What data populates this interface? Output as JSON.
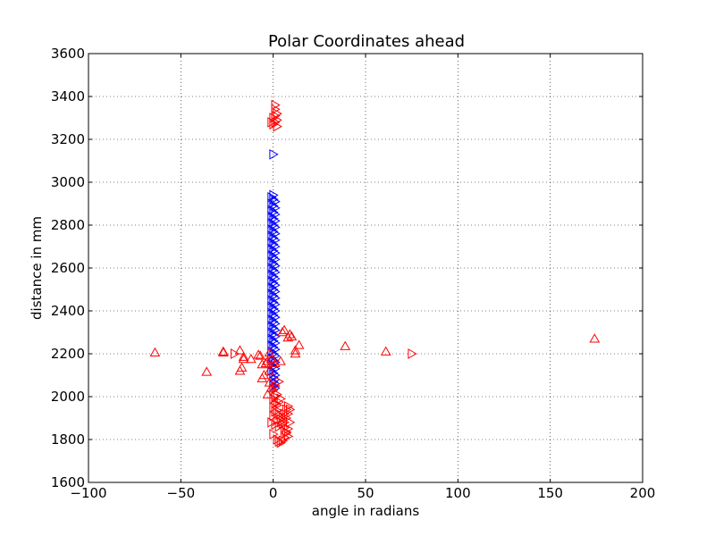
{
  "chart_data": {
    "type": "scatter",
    "title": "Polar Coordinates ahead",
    "xlabel": "angle in radians",
    "ylabel": "distance in mm",
    "xlim": [
      -100,
      200
    ],
    "ylim": [
      1600,
      3600
    ],
    "xticks": [
      -100,
      -50,
      0,
      50,
      100,
      150,
      200
    ],
    "yticks": [
      1600,
      1800,
      2000,
      2200,
      2400,
      2600,
      2800,
      3000,
      3200,
      3400,
      3600
    ],
    "xtick_labels": [
      "−100",
      "−50",
      "0",
      "50",
      "100",
      "150",
      "200"
    ],
    "ytick_labels": [
      "1600",
      "1800",
      "2000",
      "2200",
      "2400",
      "2600",
      "2800",
      "3000",
      "3200",
      "3400",
      "3600"
    ],
    "grid": true,
    "series": [
      {
        "color": "#0000ff",
        "marker": "triangle-right",
        "points": [
          [
            0,
            3130
          ],
          [
            0,
            2940
          ],
          [
            -1,
            2930
          ],
          [
            0,
            2920
          ],
          [
            1,
            2910
          ],
          [
            -1,
            2900
          ],
          [
            0,
            2890
          ],
          [
            1,
            2880
          ],
          [
            -1,
            2870
          ],
          [
            0,
            2860
          ],
          [
            1,
            2850
          ],
          [
            -1,
            2840
          ],
          [
            0,
            2830
          ],
          [
            1,
            2820
          ],
          [
            -1,
            2810
          ],
          [
            0,
            2800
          ],
          [
            1,
            2790
          ],
          [
            -1,
            2780
          ],
          [
            0,
            2770
          ],
          [
            1,
            2760
          ],
          [
            -1,
            2750
          ],
          [
            0,
            2740
          ],
          [
            1,
            2730
          ],
          [
            -1,
            2720
          ],
          [
            0,
            2710
          ],
          [
            1,
            2700
          ],
          [
            -1,
            2690
          ],
          [
            0,
            2680
          ],
          [
            1,
            2670
          ],
          [
            -1,
            2660
          ],
          [
            0,
            2650
          ],
          [
            1,
            2640
          ],
          [
            -1,
            2630
          ],
          [
            0,
            2620
          ],
          [
            1,
            2610
          ],
          [
            -1,
            2600
          ],
          [
            0,
            2590
          ],
          [
            1,
            2580
          ],
          [
            -1,
            2570
          ],
          [
            0,
            2560
          ],
          [
            1,
            2550
          ],
          [
            -1,
            2540
          ],
          [
            0,
            2530
          ],
          [
            1,
            2520
          ],
          [
            -1,
            2510
          ],
          [
            0,
            2500
          ],
          [
            1,
            2490
          ],
          [
            -1,
            2480
          ],
          [
            0,
            2470
          ],
          [
            1,
            2460
          ],
          [
            -1,
            2450
          ],
          [
            0,
            2440
          ],
          [
            1,
            2430
          ],
          [
            -1,
            2420
          ],
          [
            0,
            2410
          ],
          [
            1,
            2400
          ],
          [
            -1,
            2390
          ],
          [
            0,
            2380
          ],
          [
            1,
            2370
          ],
          [
            -1,
            2360
          ],
          [
            0,
            2350
          ],
          [
            1,
            2340
          ],
          [
            -1,
            2330
          ],
          [
            0,
            2320
          ],
          [
            1,
            2310
          ],
          [
            -1,
            2300
          ],
          [
            0,
            2290
          ],
          [
            1,
            2280
          ],
          [
            -1,
            2270
          ],
          [
            0,
            2260
          ],
          [
            1,
            2250
          ],
          [
            -1,
            2240
          ],
          [
            0,
            2230
          ],
          [
            1,
            2220
          ],
          [
            -1,
            2210
          ],
          [
            0,
            2200
          ],
          [
            1,
            2190
          ],
          [
            -1,
            2180
          ],
          [
            0,
            2170
          ],
          [
            1,
            2160
          ],
          [
            -1,
            2150
          ],
          [
            0,
            2140
          ],
          [
            1,
            2130
          ],
          [
            -1,
            2120
          ],
          [
            0,
            2110
          ],
          [
            1,
            2100
          ],
          [
            0,
            2090
          ],
          [
            1,
            2080
          ],
          [
            0,
            2070
          ],
          [
            1,
            2060
          ],
          [
            0,
            2050
          ],
          [
            1,
            2040
          ]
        ]
      },
      {
        "color": "#ff0000",
        "marker": "triangle-up",
        "points": [
          [
            -64,
            2205
          ],
          [
            -36,
            2115
          ],
          [
            -27,
            2205
          ],
          [
            -27,
            2210
          ],
          [
            -18,
            2215
          ],
          [
            -18,
            2120
          ],
          [
            -17,
            2135
          ],
          [
            -16,
            2185
          ],
          [
            -16,
            2175
          ],
          [
            -12,
            2175
          ],
          [
            -8,
            2195
          ],
          [
            -7,
            2190
          ],
          [
            -6,
            2150
          ],
          [
            -6,
            2085
          ],
          [
            -5,
            2100
          ],
          [
            -4,
            2155
          ],
          [
            -3,
            2165
          ],
          [
            -2,
            2205
          ],
          [
            -2,
            2120
          ],
          [
            -1,
            2175
          ],
          [
            1,
            2155
          ],
          [
            4,
            2165
          ],
          [
            5,
            2300
          ],
          [
            6,
            2310
          ],
          [
            9,
            2290
          ],
          [
            10,
            2280
          ],
          [
            12,
            2200
          ],
          [
            12,
            2215
          ],
          [
            14,
            2240
          ],
          [
            39,
            2235
          ],
          [
            61,
            2210
          ],
          [
            174,
            2270
          ],
          [
            8,
            2275
          ],
          [
            -2,
            2065
          ],
          [
            -1,
            2040
          ],
          [
            -3,
            2010
          ]
        ]
      },
      {
        "color": "#ff0000",
        "marker": "triangle-right",
        "points": [
          [
            75,
            2200
          ],
          [
            -21,
            2200
          ],
          [
            1,
            3360
          ],
          [
            1,
            3340
          ],
          [
            2,
            3320
          ],
          [
            1,
            3310
          ],
          [
            0,
            3300
          ],
          [
            2,
            3290
          ],
          [
            1,
            3280
          ],
          [
            0,
            3270
          ],
          [
            2,
            3260
          ],
          [
            -1,
            3280
          ],
          [
            0,
            1825
          ],
          [
            2,
            1800
          ],
          [
            3,
            1790
          ],
          [
            4,
            1785
          ],
          [
            5,
            1795
          ],
          [
            6,
            1810
          ],
          [
            7,
            1830
          ],
          [
            8,
            1850
          ],
          [
            3,
            1860
          ],
          [
            4,
            1880
          ],
          [
            5,
            1900
          ],
          [
            6,
            1920
          ],
          [
            7,
            1940
          ],
          [
            8,
            1955
          ],
          [
            2,
            1960
          ],
          [
            3,
            1975
          ],
          [
            4,
            1990
          ],
          [
            1,
            2000
          ],
          [
            2,
            1935
          ],
          [
            3,
            1915
          ],
          [
            4,
            1895
          ],
          [
            5,
            1875
          ],
          [
            6,
            1855
          ],
          [
            7,
            1835
          ],
          [
            8,
            1815
          ],
          [
            1,
            1870
          ],
          [
            2,
            1890
          ],
          [
            0,
            1910
          ],
          [
            1,
            1930
          ],
          [
            0,
            1950
          ],
          [
            1,
            1970
          ],
          [
            0,
            1990
          ],
          [
            2,
            2010
          ],
          [
            0,
            2030
          ],
          [
            1,
            2050
          ],
          [
            3,
            2070
          ],
          [
            -1,
            1880
          ],
          [
            6,
            1880
          ],
          [
            7,
            1900
          ],
          [
            8,
            1920
          ],
          [
            9,
            1940
          ],
          [
            9,
            1880
          ]
        ]
      }
    ]
  }
}
